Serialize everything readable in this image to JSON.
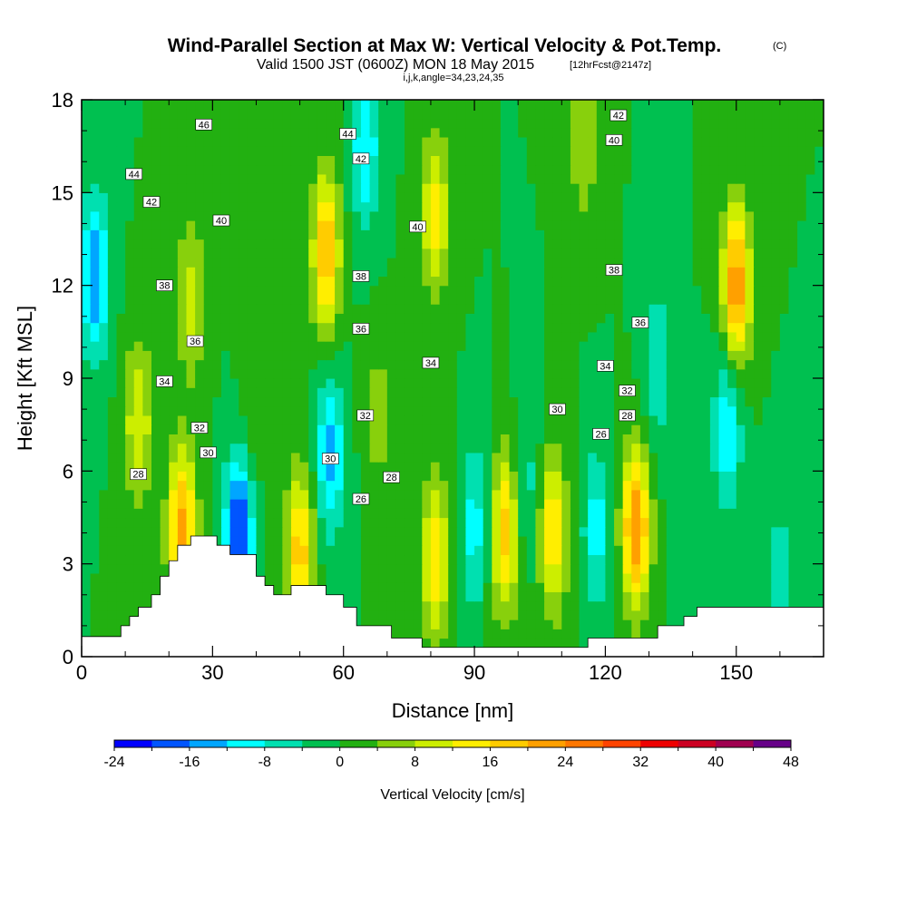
{
  "figure": {
    "title": "Wind-Parallel Section at Max W: Vertical Velocity & Pot.Temp.",
    "title_mark": "(C)",
    "subtitle": "Valid 1500 JST (0600Z) MON 18 May 2015",
    "subtitle_note": "[12hrFcst@2147z]",
    "indices": "i,j,k,angle=34,23,24,35"
  },
  "chart_data": {
    "type": "heatmap",
    "xlabel": "Distance [nm]",
    "ylabel": "Height [Kft MSL]",
    "xlim": [
      0,
      170
    ],
    "ylim": [
      0,
      18
    ],
    "xticks": [
      0,
      30,
      60,
      90,
      120,
      150
    ],
    "yticks": [
      0,
      3,
      6,
      9,
      12,
      15,
      18
    ],
    "colorbar": {
      "label": "Vertical Velocity [cm/s]",
      "range": [
        -24,
        48
      ],
      "step": 4,
      "tick_values": [
        -24,
        -16,
        -8,
        0,
        8,
        16,
        24,
        32,
        40,
        48
      ],
      "colors": [
        "#0000ff",
        "#0055ff",
        "#00a6ff",
        "#00ffff",
        "#00e0b0",
        "#00c050",
        "#22b011",
        "#88d00c",
        "#ccee00",
        "#ffee00",
        "#ffcc00",
        "#ffa000",
        "#ff7700",
        "#ff4400",
        "#ee0000",
        "#cc0022",
        "#a00050",
        "#660088"
      ]
    },
    "w_features": [
      {
        "x": 3,
        "y": 12.3,
        "w": -16
      },
      {
        "x": 13,
        "y": 7.6,
        "w": 12
      },
      {
        "x": 23,
        "y": 4.1,
        "w": 22
      },
      {
        "x": 25,
        "y": 11.5,
        "w": 10
      },
      {
        "x": 36,
        "y": 3.8,
        "w": -22
      },
      {
        "x": 40,
        "y": 8.3,
        "w": 4
      },
      {
        "x": 50,
        "y": 3.4,
        "w": 18
      },
      {
        "x": 57,
        "y": 6.6,
        "w": -14
      },
      {
        "x": 56,
        "y": 13.1,
        "w": 20
      },
      {
        "x": 65,
        "y": 16.5,
        "w": -12
      },
      {
        "x": 68,
        "y": 7.8,
        "w": 6
      },
      {
        "x": 81,
        "y": 3.2,
        "w": 16
      },
      {
        "x": 81,
        "y": 14.3,
        "w": 14
      },
      {
        "x": 90,
        "y": 4.2,
        "w": -10
      },
      {
        "x": 97,
        "y": 4.0,
        "w": 18
      },
      {
        "x": 102,
        "y": 5.5,
        "w": -6
      },
      {
        "x": 108,
        "y": 4.0,
        "w": 16
      },
      {
        "x": 118,
        "y": 4.1,
        "w": -10
      },
      {
        "x": 127,
        "y": 4.2,
        "w": 24
      },
      {
        "x": 115,
        "y": 16.6,
        "w": 8
      },
      {
        "x": 140,
        "y": 4.8,
        "w": -4
      },
      {
        "x": 150,
        "y": 12.0,
        "w": 24
      },
      {
        "x": 148,
        "y": 7.5,
        "w": -12
      },
      {
        "x": 132,
        "y": 9.3,
        "w": -8
      },
      {
        "x": 160,
        "y": 2.8,
        "w": -6
      }
    ],
    "terrain": {
      "x": [
        0,
        6,
        9,
        11,
        13,
        16,
        18,
        20,
        22,
        25,
        28,
        31,
        34,
        37,
        40,
        42,
        44,
        48,
        52,
        56,
        60,
        63,
        67,
        71,
        78,
        86,
        94,
        102,
        110,
        116,
        122,
        128,
        132,
        135,
        138,
        141,
        146,
        152,
        170
      ],
      "height": [
        0.65,
        0.65,
        1.0,
        1.3,
        1.6,
        2.0,
        2.6,
        3.1,
        3.6,
        3.9,
        3.9,
        3.6,
        3.3,
        3.3,
        2.6,
        2.3,
        2.0,
        2.3,
        2.3,
        2.0,
        1.6,
        1.0,
        1.0,
        0.6,
        0.3,
        0.3,
        0.3,
        0.3,
        0.3,
        0.6,
        0.6,
        0.6,
        1.0,
        1.0,
        1.3,
        1.6,
        1.6,
        1.6,
        1.6
      ]
    },
    "theta_contour_labels": [
      {
        "label": "46",
        "x": 28,
        "y": 17.2
      },
      {
        "label": "44",
        "x": 12,
        "y": 15.6
      },
      {
        "label": "44",
        "x": 61,
        "y": 16.9
      },
      {
        "label": "42",
        "x": 16,
        "y": 14.7
      },
      {
        "label": "42",
        "x": 64,
        "y": 16.1
      },
      {
        "label": "42",
        "x": 123,
        "y": 17.5
      },
      {
        "label": "40",
        "x": 32,
        "y": 14.1
      },
      {
        "label": "40",
        "x": 77,
        "y": 13.9
      },
      {
        "label": "40",
        "x": 122,
        "y": 16.7
      },
      {
        "label": "38",
        "x": 19,
        "y": 12.0
      },
      {
        "label": "38",
        "x": 64,
        "y": 12.3
      },
      {
        "label": "38",
        "x": 122,
        "y": 12.5
      },
      {
        "label": "36",
        "x": 26,
        "y": 10.2
      },
      {
        "label": "36",
        "x": 64,
        "y": 10.6
      },
      {
        "label": "36",
        "x": 128,
        "y": 10.8
      },
      {
        "label": "34",
        "x": 19,
        "y": 8.9
      },
      {
        "label": "34",
        "x": 80,
        "y": 9.5
      },
      {
        "label": "34",
        "x": 120,
        "y": 9.4
      },
      {
        "label": "32",
        "x": 27,
        "y": 7.4
      },
      {
        "label": "32",
        "x": 65,
        "y": 7.8
      },
      {
        "label": "32",
        "x": 125,
        "y": 8.6
      },
      {
        "label": "30",
        "x": 29,
        "y": 6.6
      },
      {
        "label": "30",
        "x": 57,
        "y": 6.4
      },
      {
        "label": "30",
        "x": 109,
        "y": 8.0
      },
      {
        "label": "28",
        "x": 13,
        "y": 5.9
      },
      {
        "label": "28",
        "x": 71,
        "y": 5.8
      },
      {
        "label": "28",
        "x": 125,
        "y": 7.8
      },
      {
        "label": "26",
        "x": 64,
        "y": 5.1
      },
      {
        "label": "26",
        "x": 119,
        "y": 7.2
      }
    ]
  }
}
